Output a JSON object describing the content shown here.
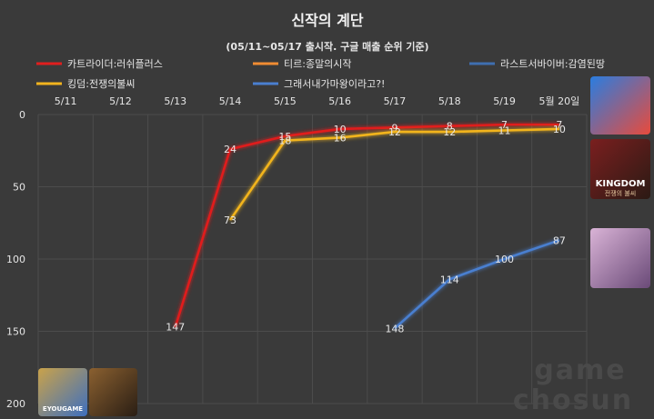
{
  "chart_data": {
    "type": "line",
    "title": "신작의 계단",
    "subtitle": "(05/11~05/17 출시작. 구글 매출 순위 기준)",
    "categories": [
      "5/11",
      "5/12",
      "5/13",
      "5/14",
      "5/15",
      "5/16",
      "5/17",
      "5/18",
      "5/19",
      "5월 20일"
    ],
    "y_ticks": [
      0,
      50,
      100,
      150,
      200
    ],
    "ylim": [
      0,
      200
    ],
    "y_inverted": true,
    "x_axis_position": "top",
    "grid": true,
    "legend_placement": "top",
    "series": [
      {
        "name": "카트라이더:러쉬플러스",
        "color": "#e01e1e",
        "values": [
          null,
          null,
          147,
          24,
          15,
          10,
          9,
          8,
          7,
          7
        ]
      },
      {
        "name": "티르:종말의시작",
        "color": "#f08c32",
        "values": [
          null,
          null,
          null,
          null,
          null,
          null,
          null,
          null,
          null,
          null
        ]
      },
      {
        "name": "라스트서바이버:감염된땅",
        "color": "#3f6fb0",
        "values": [
          null,
          null,
          null,
          null,
          null,
          null,
          null,
          null,
          null,
          null
        ]
      },
      {
        "name": "킹덤:전쟁의불씨",
        "color": "#f2b41e",
        "values": [
          null,
          null,
          null,
          73,
          18,
          16,
          12,
          12,
          11,
          10
        ]
      },
      {
        "name": "그래서내가마왕이라고?!",
        "color": "#4a7fd0",
        "values": [
          null,
          null,
          null,
          null,
          null,
          null,
          148,
          114,
          100,
          87
        ]
      }
    ]
  },
  "watermark": [
    "game",
    "chosun"
  ],
  "thumbnails": [
    {
      "name": "kartrider-thumb",
      "side": "right",
      "colors": [
        "#2a7de0",
        "#e84b3c"
      ]
    },
    {
      "name": "kingdom-thumb",
      "side": "right",
      "label": "KINGDOM",
      "sublabel": "전쟁의 불씨",
      "colors": [
        "#7a1f1f",
        "#2b1a14"
      ]
    },
    {
      "name": "maou-thumb",
      "side": "right",
      "colors": [
        "#d9b3d6",
        "#6a4a78"
      ]
    },
    {
      "name": "tir-thumb",
      "side": "bottom-left",
      "label": "EYOUGAME",
      "colors": [
        "#c9a24a",
        "#3d6fbf"
      ]
    },
    {
      "name": "lastsurvivor-thumb",
      "side": "bottom-left",
      "colors": [
        "#8a6030",
        "#2a1e14"
      ]
    }
  ]
}
